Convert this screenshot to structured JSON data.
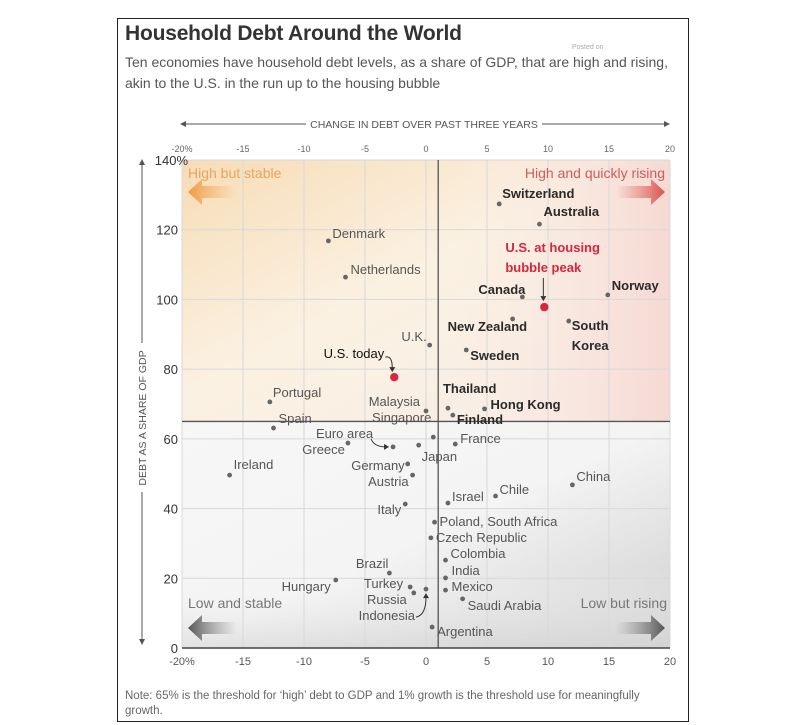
{
  "header": {
    "title": "Household Debt Around the World",
    "subtitle": "Ten economies have household debt levels, as a share of GDP, that are high and rising, akin to the U.S. in the run up to the housing bubble",
    "watermark": "Posted on"
  },
  "footer": {
    "note": "Note: 65% is the threshold for ‘high’ debt to GDP and 1% growth is the threshold use for meaningfully growth."
  },
  "colors": {
    "highlight_red": "#d7263d",
    "dot_gray": "#666666",
    "high_stable_orange": "#e8a25a",
    "high_rising_red": "#d9534f",
    "low_gray": "#555555"
  },
  "chart_data": {
    "type": "scatter",
    "title": "Household Debt Around the World",
    "xlabel": "CHANGE IN DEBT OVER PAST THREE YEARS",
    "ylabel": "DEBT AS A SHARE OF GDP",
    "xlim": [
      -20,
      20
    ],
    "ylim": [
      0,
      140
    ],
    "x_ticks": [
      -20,
      -15,
      -10,
      -5,
      0,
      5,
      10,
      15,
      20
    ],
    "x_tick_labels": [
      "-20%",
      "-15",
      "-10",
      "-5",
      "0",
      "5",
      "10",
      "15",
      "20"
    ],
    "y_ticks": [
      0,
      20,
      40,
      60,
      80,
      100,
      120,
      140
    ],
    "y_tick_labels": [
      "0",
      "20",
      "40",
      "60",
      "80",
      "100",
      "120",
      "140%"
    ],
    "grid": true,
    "thresholds": {
      "x": 1,
      "y": 65
    },
    "quadrants": [
      {
        "label": "High but stable",
        "position": "top-left",
        "arrow": "left"
      },
      {
        "label": "High and quickly rising",
        "position": "top-right",
        "arrow": "right"
      },
      {
        "label": "Low and stable",
        "position": "bottom-left",
        "arrow": "left"
      },
      {
        "label": "Low but rising",
        "position": "bottom-right",
        "arrow": "right"
      }
    ],
    "annotations": [
      {
        "text": "U.S. at housing",
        "ref": "U.S. at housing bubble peak"
      },
      {
        "text": "bubble peak",
        "ref": "U.S. at housing bubble peak"
      }
    ],
    "points": [
      {
        "name": "Switzerland",
        "x": 6.0,
        "y": 127.4,
        "bold": true
      },
      {
        "name": "Australia",
        "x": 9.3,
        "y": 121.6,
        "bold": true
      },
      {
        "name": "Denmark",
        "x": -8.0,
        "y": 116.8
      },
      {
        "name": "Netherlands",
        "x": -6.6,
        "y": 106.4
      },
      {
        "name": "Canada",
        "x": 7.9,
        "y": 100.7,
        "bold": true
      },
      {
        "name": "U.S. at housing bubble peak",
        "x": 9.7,
        "y": 97.8,
        "highlight": true
      },
      {
        "name": "Norway",
        "x": 14.9,
        "y": 101.3,
        "bold": true
      },
      {
        "name": "New Zealand",
        "x": 7.1,
        "y": 94.4,
        "bold": true
      },
      {
        "name": "South Korea",
        "x": 11.7,
        "y": 93.8,
        "bold": true
      },
      {
        "name": "U.K.",
        "x": 0.3,
        "y": 86.9
      },
      {
        "name": "Sweden",
        "x": 3.3,
        "y": 85.5,
        "bold": true
      },
      {
        "name": "U.S. today",
        "x": -2.6,
        "y": 77.7,
        "highlight": true
      },
      {
        "name": "Portugal",
        "x": -12.8,
        "y": 70.6
      },
      {
        "name": "Malaysia",
        "x": 0.0,
        "y": 68.0
      },
      {
        "name": "Thailand",
        "x": 1.8,
        "y": 68.8,
        "bold": true
      },
      {
        "name": "Hong Kong",
        "x": 4.8,
        "y": 68.6,
        "bold": true
      },
      {
        "name": "Finland",
        "x": 2.2,
        "y": 66.8,
        "bold": true
      },
      {
        "name": "Spain",
        "x": -12.5,
        "y": 63.1
      },
      {
        "name": "Singapore",
        "x": 0.6,
        "y": 60.5
      },
      {
        "name": "France",
        "x": 2.4,
        "y": 58.5
      },
      {
        "name": "Euro area",
        "x": -2.7,
        "y": 57.7
      },
      {
        "name": "Greece",
        "x": -6.4,
        "y": 58.8
      },
      {
        "name": "Japan",
        "x": -0.6,
        "y": 58.2
      },
      {
        "name": "Germany",
        "x": -1.5,
        "y": 52.8
      },
      {
        "name": "Austria",
        "x": -1.1,
        "y": 49.6
      },
      {
        "name": "Ireland",
        "x": -16.1,
        "y": 49.6
      },
      {
        "name": "China",
        "x": 12.0,
        "y": 46.8
      },
      {
        "name": "Chile",
        "x": 5.7,
        "y": 43.6
      },
      {
        "name": "Israel",
        "x": 1.8,
        "y": 41.6
      },
      {
        "name": "Italy",
        "x": -1.7,
        "y": 41.3
      },
      {
        "name": "Poland, South Africa",
        "x": 0.7,
        "y": 36.1
      },
      {
        "name": "Czech Republic",
        "x": 0.4,
        "y": 31.6
      },
      {
        "name": "Colombia",
        "x": 1.6,
        "y": 25.2
      },
      {
        "name": "Brazil",
        "x": -3.0,
        "y": 21.5
      },
      {
        "name": "India",
        "x": 1.6,
        "y": 20.1
      },
      {
        "name": "Hungary",
        "x": -7.4,
        "y": 19.5
      },
      {
        "name": "Mexico",
        "x": 1.6,
        "y": 16.6
      },
      {
        "name": "Turkey",
        "x": -1.3,
        "y": 17.5
      },
      {
        "name": "Russia",
        "x": -1.0,
        "y": 15.8
      },
      {
        "name": "Indonesia",
        "x": 0.0,
        "y": 16.9
      },
      {
        "name": "Saudi Arabia",
        "x": 3.0,
        "y": 14.1
      },
      {
        "name": "Argentina",
        "x": 0.5,
        "y": 6.0
      }
    ]
  }
}
